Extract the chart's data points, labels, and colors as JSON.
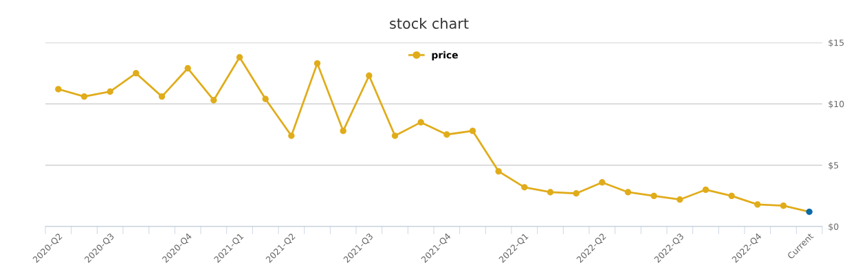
{
  "chart_data": {
    "type": "line",
    "title": "stock chart",
    "categories": [
      "2020-Q2",
      null,
      "2020-Q3",
      null,
      null,
      "2020-Q4",
      null,
      "2021-Q1",
      null,
      "2021-Q2",
      null,
      null,
      "2021-Q3",
      null,
      null,
      "2021-Q4",
      null,
      null,
      "2022-Q1",
      null,
      null,
      "2022-Q2",
      null,
      null,
      "2022-Q3",
      null,
      null,
      "2022-Q4",
      null,
      "Current"
    ],
    "series": [
      {
        "name": "price",
        "color": "#e0ac1a",
        "values": [
          11.2,
          10.6,
          11.0,
          12.5,
          10.6,
          12.9,
          10.3,
          13.8,
          10.4,
          7.4,
          13.3,
          7.8,
          12.3,
          7.4,
          8.5,
          7.5,
          7.8,
          4.5,
          3.2,
          2.8,
          2.7,
          3.6,
          2.8,
          2.5,
          2.2,
          3.0,
          2.5,
          1.8,
          1.7,
          1.2
        ],
        "colors": [
          "#e0ac1a",
          "#e0ac1a",
          "#e0ac1a",
          "#e0ac1a",
          "#e0ac1a",
          "#e0ac1a",
          "#e0ac1a",
          "#e0ac1a",
          "#e0ac1a",
          "#e0ac1a",
          "#e0ac1a",
          "#e0ac1a",
          "#e0ac1a",
          "#e0ac1a",
          "#e0ac1a",
          "#e0ac1a",
          "#e0ac1a",
          "#e0ac1a",
          "#e0ac1a",
          "#e0ac1a",
          "#e0ac1a",
          "#e0ac1a",
          "#e0ac1a",
          "#e0ac1a",
          "#e0ac1a",
          "#e0ac1a",
          "#e0ac1a",
          "#e0ac1a",
          "#e0ac1a",
          "#0b6aa8"
        ]
      }
    ],
    "ylim": [
      0,
      15
    ],
    "yticks": [
      {
        "value": 0,
        "label": "$0"
      },
      {
        "value": 5,
        "label": "$5"
      },
      {
        "value": 10,
        "label": "$10"
      },
      {
        "value": 15,
        "label": "$15"
      }
    ],
    "grid": "y",
    "legend": "top",
    "marker": "circle",
    "line_style": "solid"
  }
}
